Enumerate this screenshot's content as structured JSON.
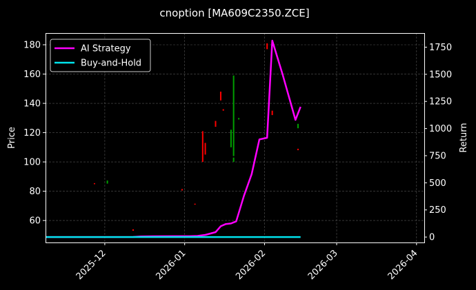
{
  "chart_data": {
    "type": "line",
    "title": "cnoption [MA609C2350.ZCE]",
    "ylabel_left": "Price",
    "ylabel_right": "Return",
    "xlabel": "",
    "grid": true,
    "legend_position": "top-left",
    "x_range": [
      "2025-11-08",
      "2026-04-04"
    ],
    "ylim_left": [
      45,
      188
    ],
    "ylim_right": [
      -50,
      1880
    ],
    "x_ticks": [
      "2025-12",
      "2026-01",
      "2026-02",
      "2026-03",
      "2026-04"
    ],
    "y_ticks_left": [
      60,
      80,
      100,
      120,
      140,
      160,
      180
    ],
    "y_ticks_right": [
      0,
      250,
      500,
      750,
      1000,
      1250,
      1500,
      1750
    ],
    "colors": {
      "ai": "#ff00ff",
      "bh": "#00e5ee",
      "up": "#00a000",
      "down": "#ff0000",
      "grid": "#555555"
    },
    "series": [
      {
        "name": "AI Strategy",
        "axis": "right",
        "points": [
          [
            "2025-11-08",
            0
          ],
          [
            "2025-11-20",
            0
          ],
          [
            "2025-12-05",
            0
          ],
          [
            "2025-12-12",
            1
          ],
          [
            "2025-12-15",
            5
          ],
          [
            "2025-12-20",
            7
          ],
          [
            "2025-12-28",
            8
          ],
          [
            "2026-01-03",
            8
          ],
          [
            "2026-01-06",
            10
          ],
          [
            "2026-01-09",
            20
          ],
          [
            "2026-01-13",
            45
          ],
          [
            "2026-01-15",
            100
          ],
          [
            "2026-01-17",
            120
          ],
          [
            "2026-01-19",
            125
          ],
          [
            "2026-01-21",
            145
          ],
          [
            "2026-01-24",
            380
          ],
          [
            "2026-01-27",
            580
          ],
          [
            "2026-01-30",
            900
          ],
          [
            "2026-02-02",
            915
          ],
          [
            "2026-02-04",
            1810
          ],
          [
            "2026-02-08",
            1500
          ],
          [
            "2026-02-13",
            1080
          ],
          [
            "2026-02-15",
            1200
          ]
        ]
      },
      {
        "name": "Buy-and-Hold",
        "axis": "right",
        "points": [
          [
            "2025-11-08",
            0
          ],
          [
            "2026-02-15",
            0
          ]
        ]
      }
    ],
    "candles": [
      {
        "date": "2025-11-27",
        "open": 85.5,
        "close": 85,
        "dir": "down"
      },
      {
        "date": "2025-12-02",
        "open": 85.2,
        "close": 87.3,
        "dir": "up"
      },
      {
        "date": "2025-12-12",
        "open": 54,
        "close": 53,
        "dir": "down"
      },
      {
        "date": "2025-12-31",
        "open": 81.5,
        "close": 80.5,
        "dir": "down"
      },
      {
        "date": "2026-01-05",
        "open": 71.5,
        "close": 71,
        "dir": "down"
      },
      {
        "date": "2026-01-08",
        "open": 121,
        "close": 100,
        "dir": "down"
      },
      {
        "date": "2026-01-09",
        "open": 113,
        "close": 105,
        "dir": "down"
      },
      {
        "date": "2026-01-13",
        "open": 128,
        "close": 124,
        "dir": "down"
      },
      {
        "date": "2026-01-15",
        "open": 148,
        "close": 142,
        "dir": "down"
      },
      {
        "date": "2026-01-16",
        "open": 136,
        "close": 135,
        "dir": "down"
      },
      {
        "date": "2026-01-19",
        "open": 110,
        "close": 122,
        "dir": "up"
      },
      {
        "date": "2026-01-20",
        "open": 104,
        "close": 159,
        "dir": "up"
      },
      {
        "date": "2026-01-20",
        "open": 100,
        "close": 103,
        "dir": "up"
      },
      {
        "date": "2026-01-22",
        "open": 129,
        "close": 130,
        "dir": "up"
      },
      {
        "date": "2026-02-02",
        "open": 181,
        "close": 177,
        "dir": "down"
      },
      {
        "date": "2026-02-04",
        "open": 135,
        "close": 132,
        "dir": "down"
      },
      {
        "date": "2026-02-14",
        "open": 123,
        "close": 126,
        "dir": "up"
      },
      {
        "date": "2026-02-14",
        "open": 109,
        "close": 108,
        "dir": "down"
      }
    ]
  }
}
